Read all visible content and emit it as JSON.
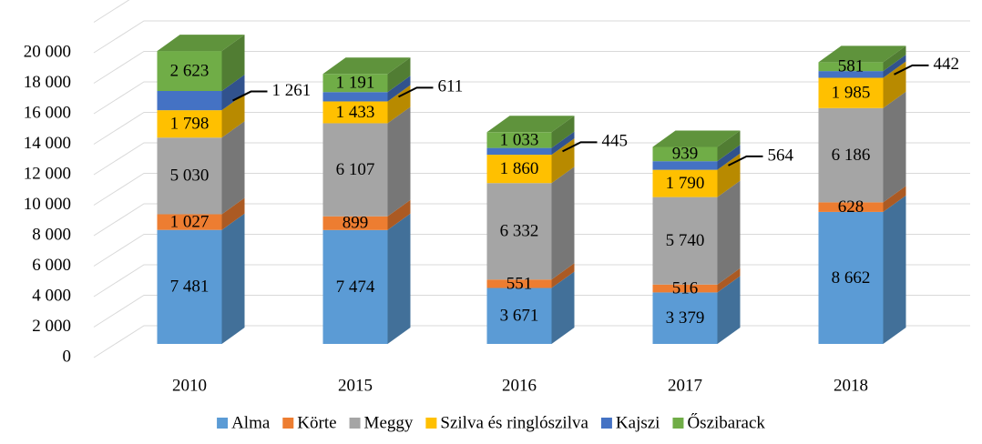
{
  "chart_data": {
    "type": "bar3d_stacked",
    "categories": [
      "2010",
      "2015",
      "2016",
      "2017",
      "2018"
    ],
    "series": [
      {
        "name": "Alma",
        "color": "#5b9bd5",
        "values": [
          7481,
          7474,
          3671,
          3379,
          8662
        ],
        "value_labels": [
          "7 481",
          "7 474",
          "3 671",
          "3 379",
          "8 662"
        ]
      },
      {
        "name": "Körte",
        "color": "#ed7d31",
        "values": [
          1027,
          899,
          551,
          516,
          628
        ],
        "value_labels": [
          "1 027",
          "899",
          "551",
          "516",
          "628"
        ]
      },
      {
        "name": "Meggy",
        "color": "#a5a5a5",
        "values": [
          5030,
          6107,
          6332,
          5740,
          6186
        ],
        "value_labels": [
          "5 030",
          "6 107",
          "6 332",
          "5 740",
          "6 186"
        ]
      },
      {
        "name": "Szilva és ringlószilva",
        "color": "#ffc000",
        "values": [
          1798,
          1433,
          1860,
          1790,
          1985
        ],
        "value_labels": [
          "1 798",
          "1 433",
          "1 860",
          "1 790",
          "1 985"
        ]
      },
      {
        "name": "Kajszi",
        "color": "#4472c4",
        "values": [
          1261,
          611,
          445,
          564,
          442
        ],
        "value_labels": [
          "1 261",
          "611",
          "445",
          "564",
          "442"
        ]
      },
      {
        "name": "Őszibarack",
        "color": "#70ad47",
        "values": [
          2623,
          1191,
          1033,
          939,
          581
        ],
        "value_labels": [
          "2 623",
          "1 191",
          "1 033",
          "939",
          "581"
        ]
      }
    ],
    "ylim": [
      0,
      22000
    ],
    "yticks": [
      0,
      {
        "value": 2000,
        "label": "2 000"
      },
      {
        "value": 4000,
        "label": "4 000"
      },
      {
        "value": 6000,
        "label": "6 000"
      },
      {
        "value": 8000,
        "label": "8 000"
      },
      {
        "value": 10000,
        "label": "10 000"
      },
      {
        "value": 12000,
        "label": "12 000"
      },
      {
        "value": 14000,
        "label": "14 000"
      },
      {
        "value": 16000,
        "label": "16 000"
      },
      {
        "value": 18000,
        "label": "18 000"
      },
      {
        "value": 20000,
        "label": "20 000"
      }
    ],
    "grid": true,
    "legend": "bottom",
    "outside_label_series": "Kajszi"
  }
}
